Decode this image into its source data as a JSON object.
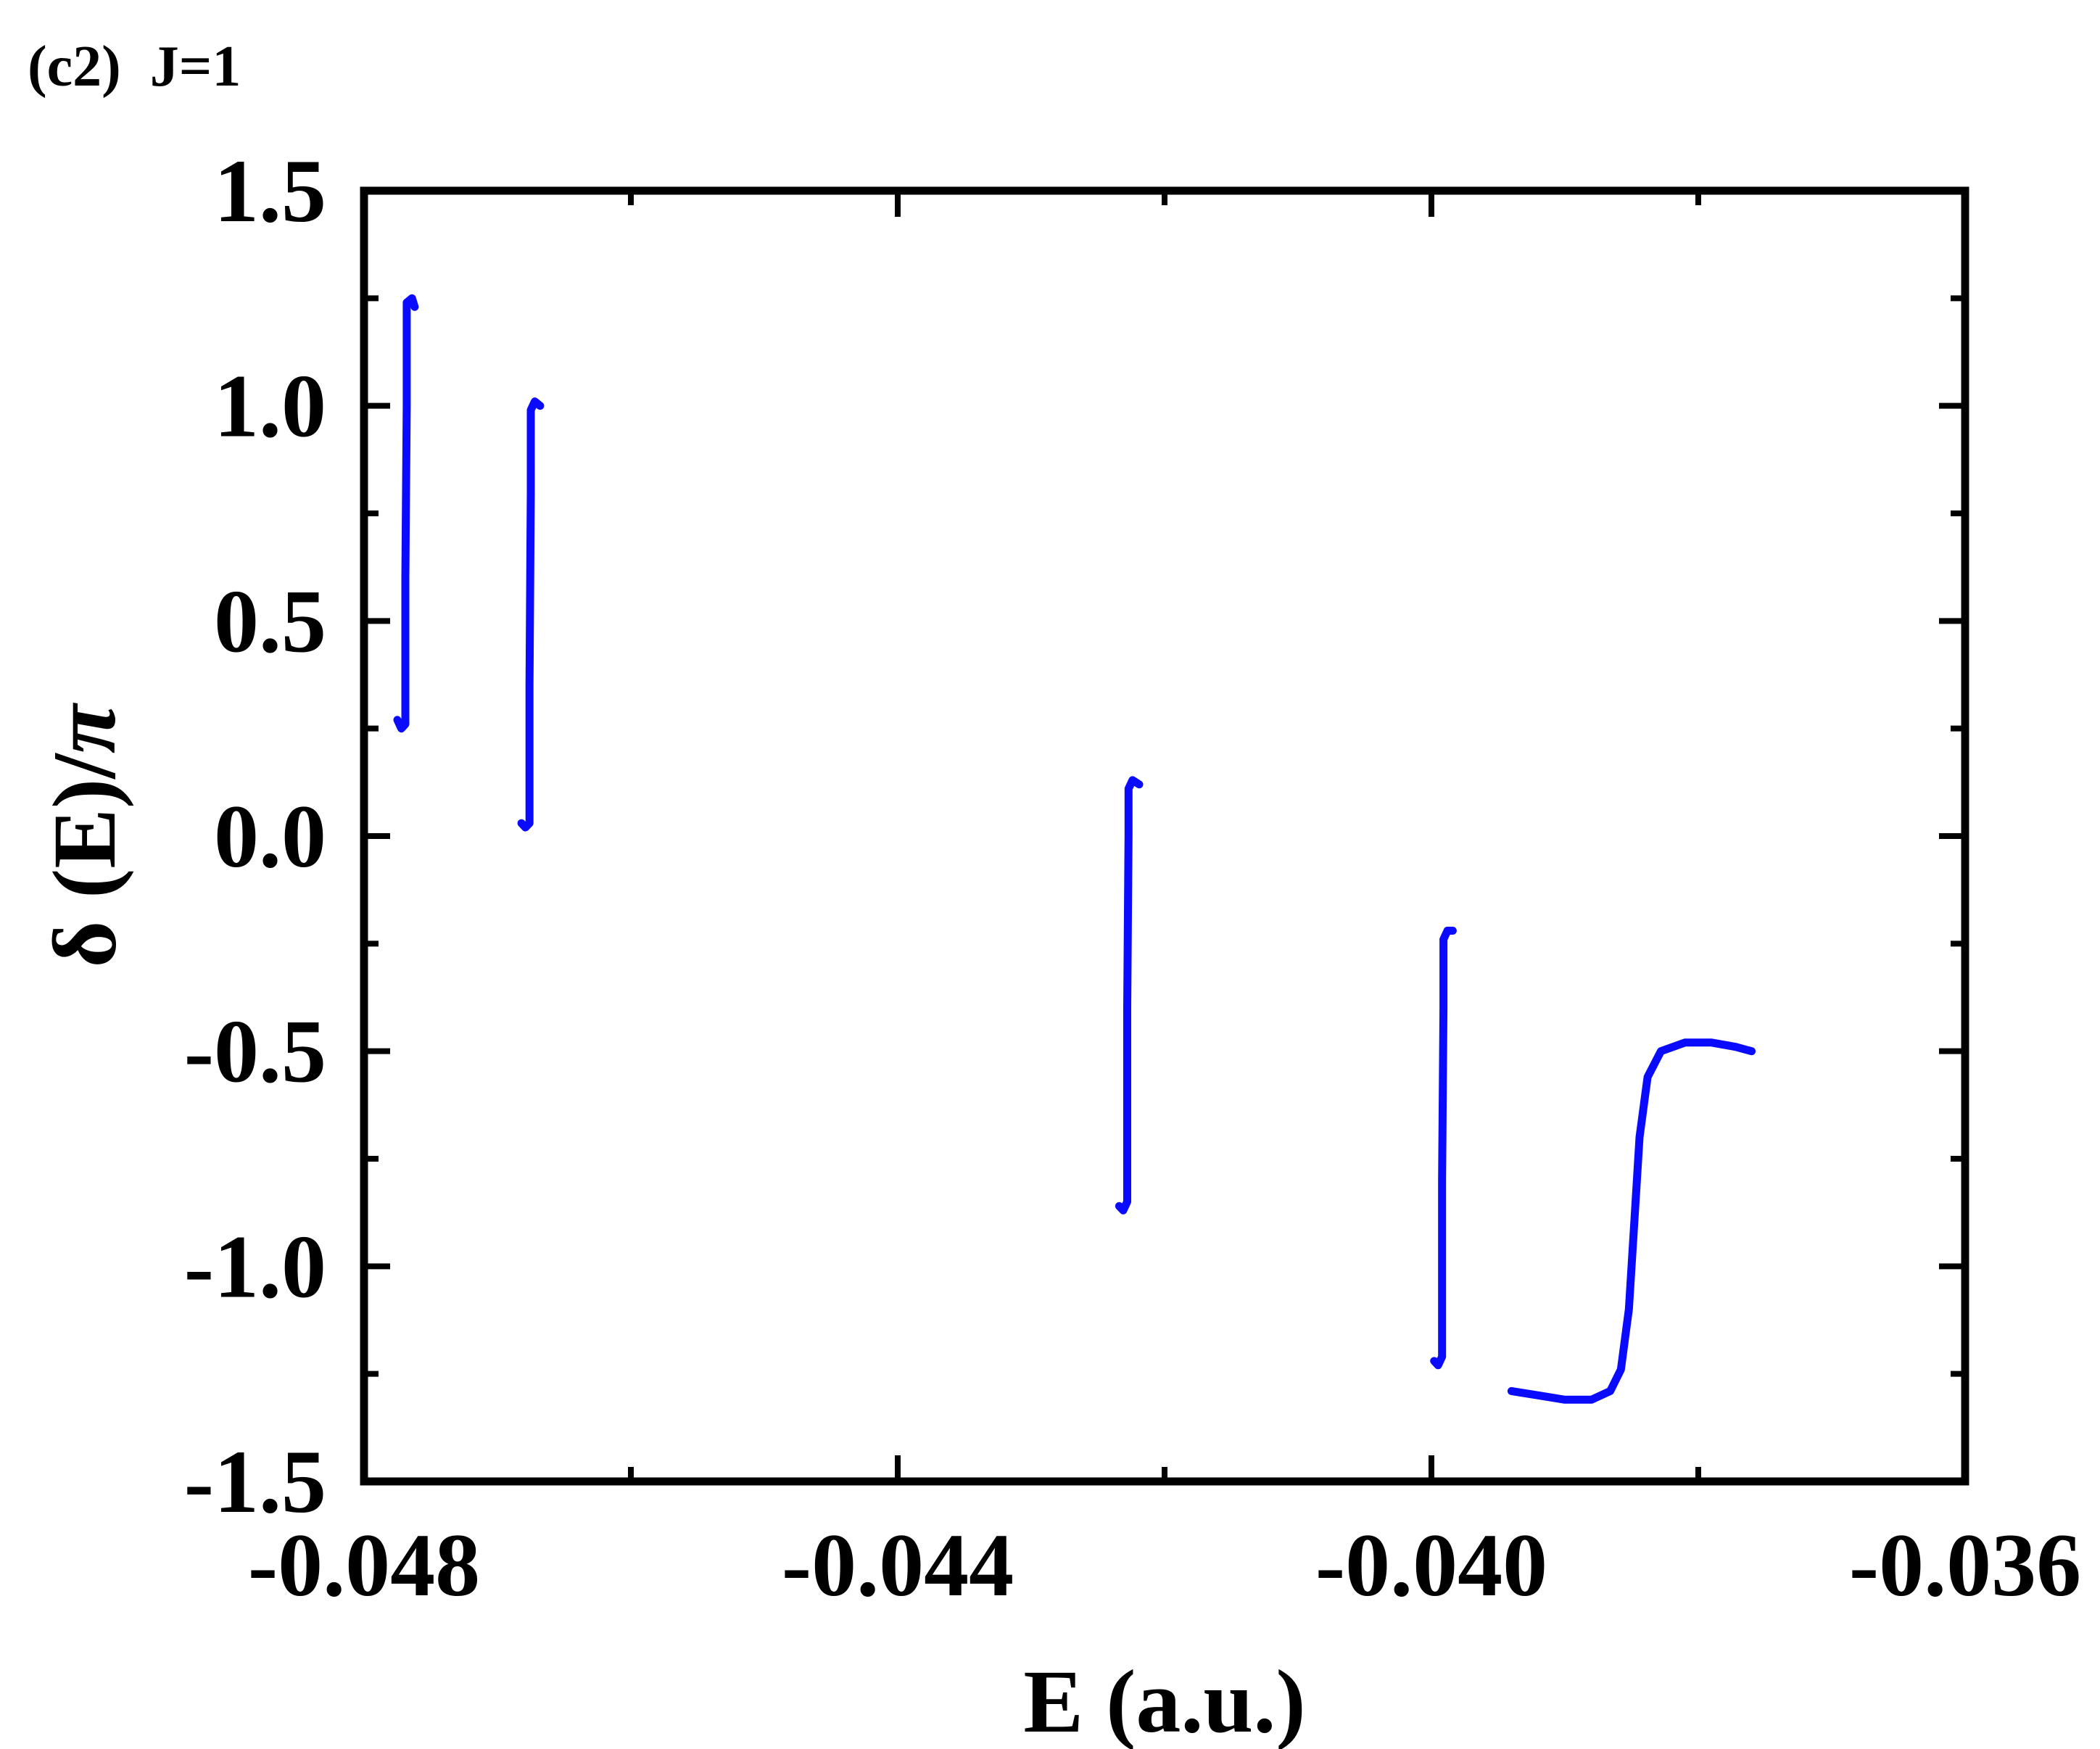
{
  "panel_label": "(c2)  J=1",
  "chart_data": {
    "type": "line",
    "xlabel": "E (a.u.)",
    "ylabel_symbol": "δ",
    "ylabel_rest": " (E)/",
    "ylabel_pi": "π",
    "xlim": [
      -0.048,
      -0.036
    ],
    "ylim": [
      -1.5,
      1.5
    ],
    "x_ticks": [
      -0.048,
      -0.044,
      -0.04,
      -0.036
    ],
    "x_tick_labels": [
      "-0.048",
      "-0.044",
      "-0.040",
      "-0.036"
    ],
    "x_minor_ticks": [
      -0.046,
      -0.042,
      -0.038
    ],
    "y_ticks": [
      -1.5,
      -1.0,
      -0.5,
      0.0,
      0.5,
      1.0,
      1.5
    ],
    "y_tick_labels": [
      "-1.5",
      "-1.0",
      "-0.5",
      "0.0",
      "0.5",
      "1.0",
      "1.5"
    ],
    "y_minor_ticks": [
      -1.25,
      -0.75,
      -0.25,
      0.25,
      0.75,
      1.25
    ],
    "grid": false,
    "series_color": "#0a0aff",
    "segments": [
      [
        [
          -0.04775,
          0.27
        ],
        [
          -0.04772,
          0.25
        ],
        [
          -0.04769,
          0.26
        ],
        [
          -0.04769,
          0.6
        ],
        [
          -0.04768,
          1.0
        ],
        [
          -0.04768,
          1.24
        ],
        [
          -0.04764,
          1.25
        ],
        [
          -0.04762,
          1.23
        ]
      ],
      [
        [
          -0.04682,
          0.03
        ],
        [
          -0.04679,
          0.02
        ],
        [
          -0.04676,
          0.03
        ],
        [
          -0.04676,
          0.35
        ],
        [
          -0.04675,
          0.8
        ],
        [
          -0.04675,
          0.99
        ],
        [
          -0.04672,
          1.01
        ],
        [
          -0.04668,
          1.0
        ]
      ],
      [
        [
          -0.04234,
          -0.86
        ],
        [
          -0.04231,
          -0.87
        ],
        [
          -0.04228,
          -0.85
        ],
        [
          -0.04228,
          -0.4
        ],
        [
          -0.04227,
          0.0
        ],
        [
          -0.04227,
          0.11
        ],
        [
          -0.04224,
          0.13
        ],
        [
          -0.04219,
          0.12
        ]
      ],
      [
        [
          -0.03998,
          -1.22
        ],
        [
          -0.03995,
          -1.23
        ],
        [
          -0.03992,
          -1.21
        ],
        [
          -0.03992,
          -0.8
        ],
        [
          -0.03991,
          -0.4
        ],
        [
          -0.03991,
          -0.24
        ],
        [
          -0.03988,
          -0.22
        ],
        [
          -0.03984,
          -0.22
        ]
      ],
      [
        [
          -0.0394,
          -1.29
        ],
        [
          -0.0392,
          -1.3
        ],
        [
          -0.039,
          -1.31
        ],
        [
          -0.0388,
          -1.31
        ],
        [
          -0.03866,
          -1.29
        ],
        [
          -0.03858,
          -1.24
        ],
        [
          -0.03852,
          -1.1
        ],
        [
          -0.03848,
          -0.9
        ],
        [
          -0.03844,
          -0.7
        ],
        [
          -0.03838,
          -0.56
        ],
        [
          -0.03828,
          -0.5
        ],
        [
          -0.0381,
          -0.48
        ],
        [
          -0.0379,
          -0.48
        ],
        [
          -0.03772,
          -0.49
        ],
        [
          -0.0376,
          -0.5
        ]
      ]
    ]
  }
}
